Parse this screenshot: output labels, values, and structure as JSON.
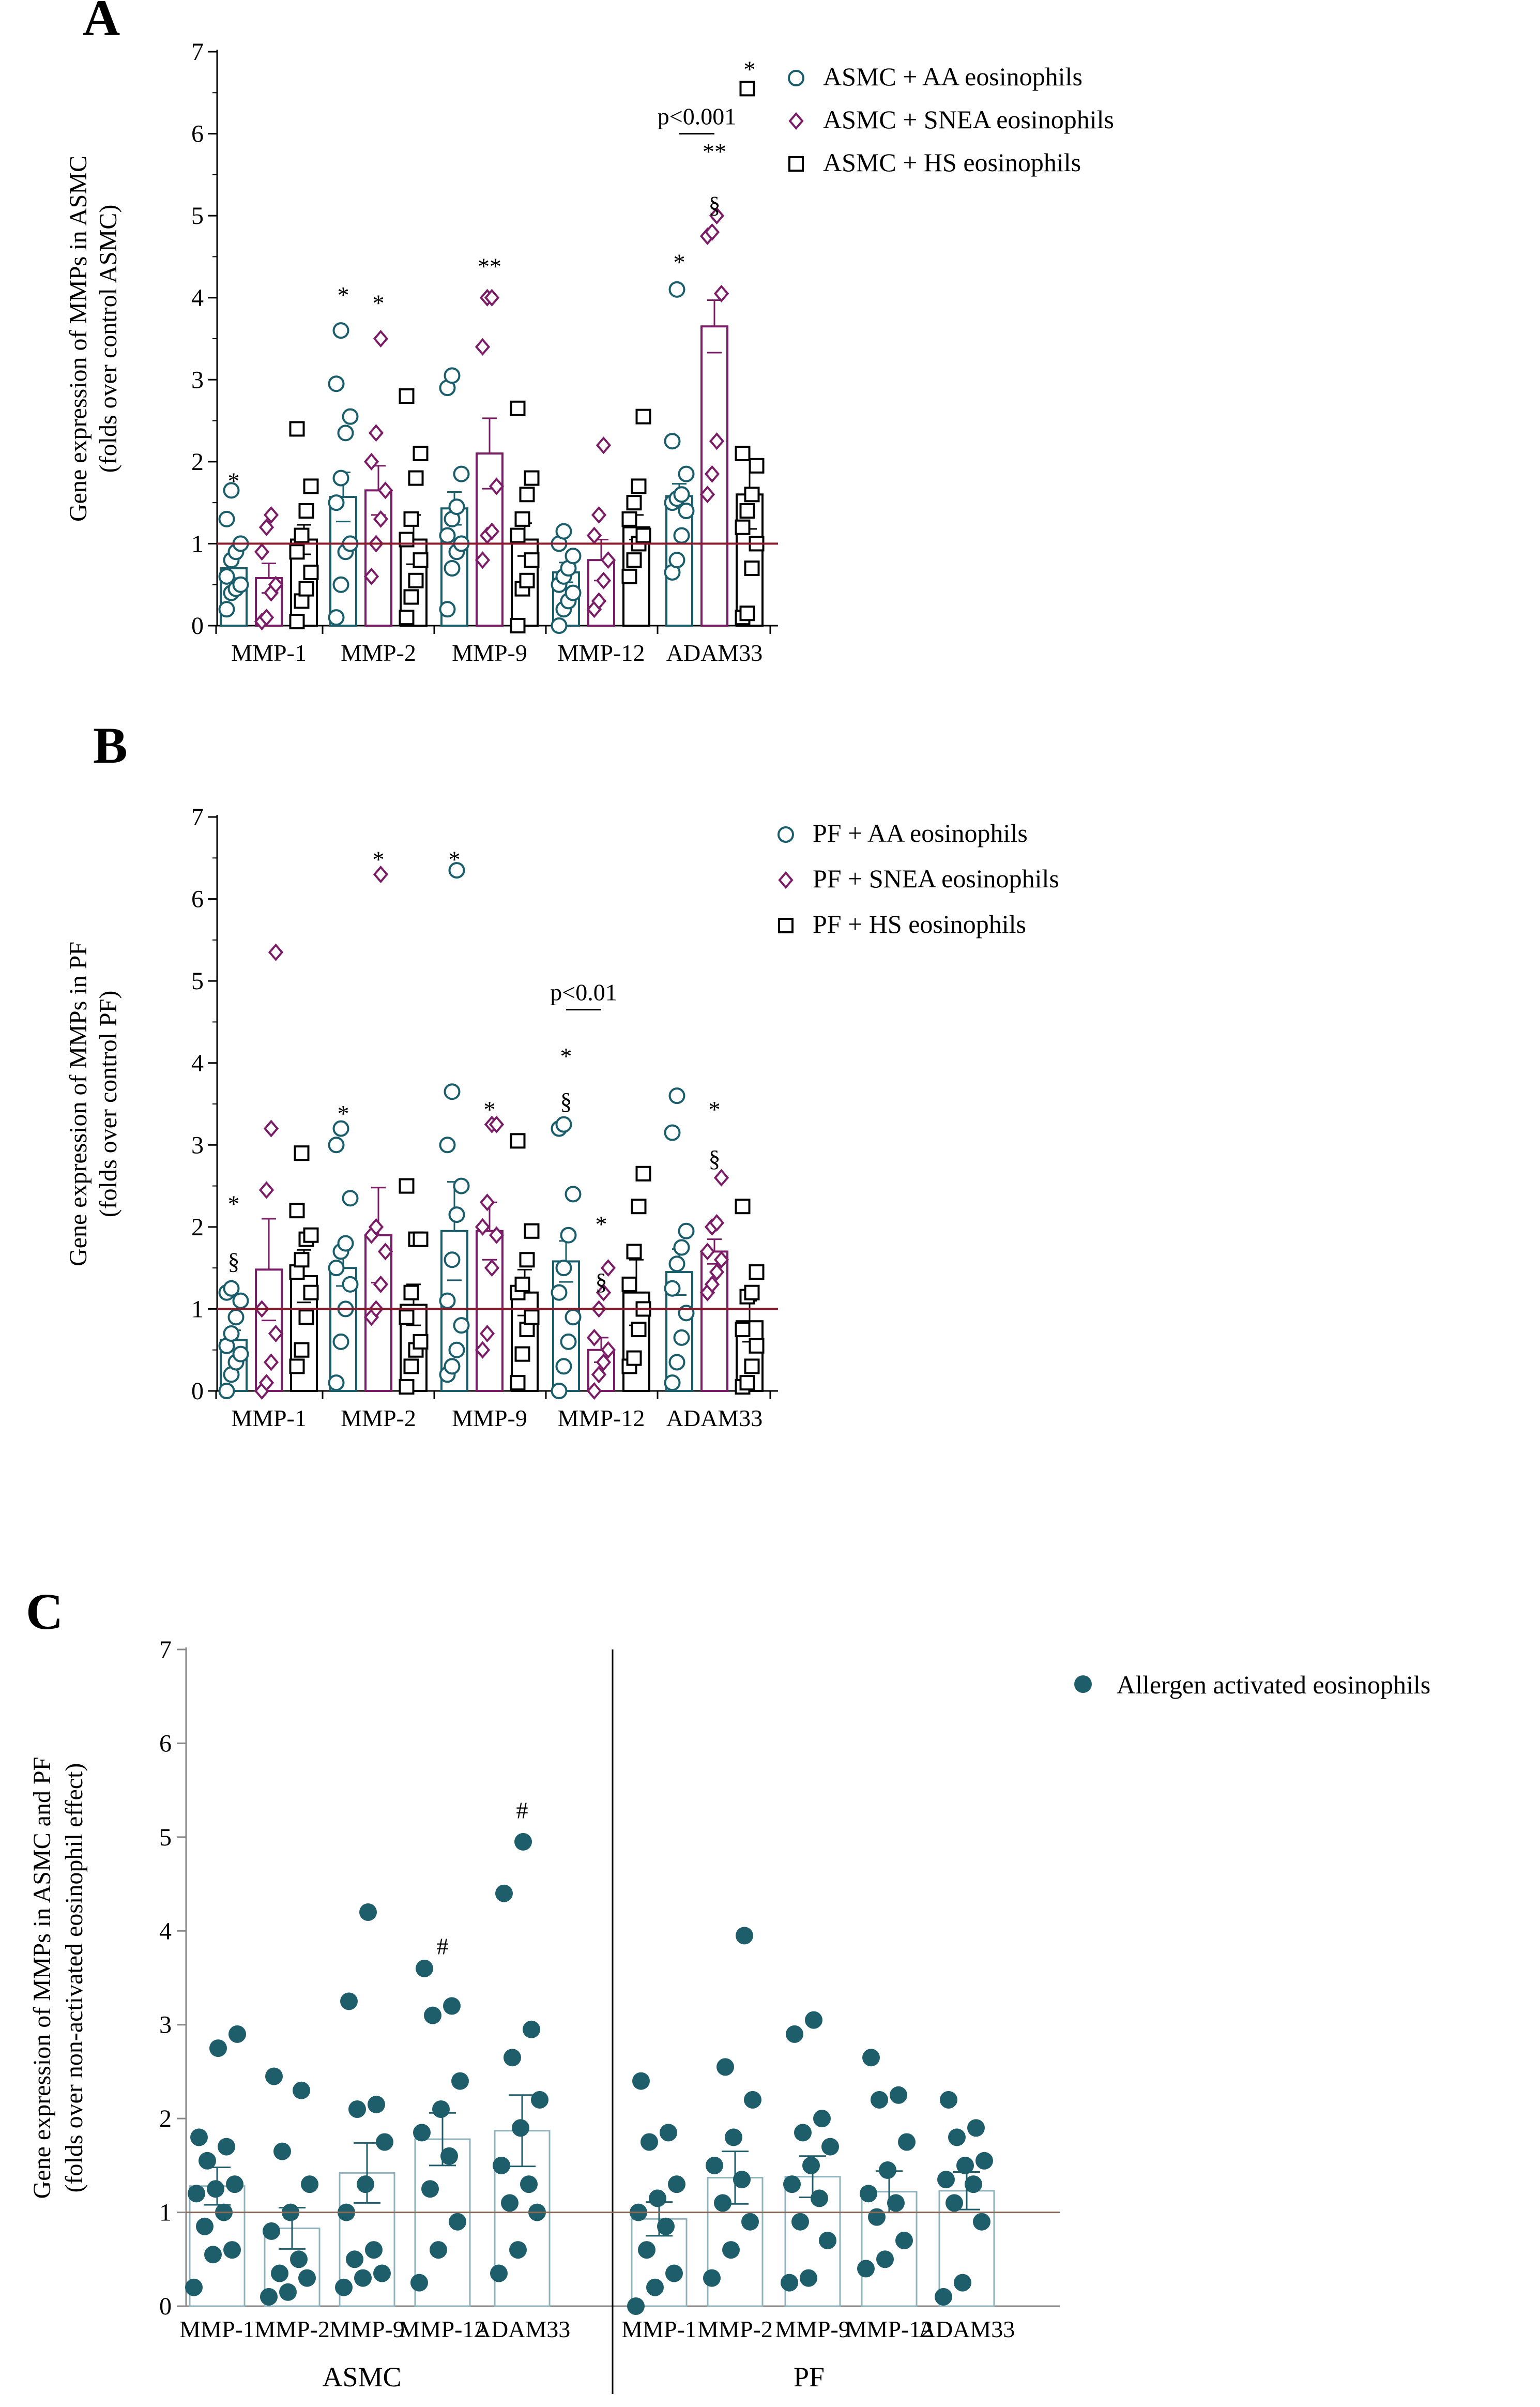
{
  "colors": {
    "aa": "#1a5e6b",
    "snea": "#7a1c66",
    "hs": "#000000",
    "refline": "#8a1a2a",
    "c_dot": "#1e5e6b"
  },
  "chart_data": [
    {
      "id": "A",
      "type": "bar",
      "panel_label": "A",
      "ylabel_lines": [
        "Gene expression of  MMPs in ASMC",
        "(folds over control ASMC)"
      ],
      "ylim": [
        0,
        7
      ],
      "yticks": [
        "0",
        "1",
        "2",
        "3",
        "4",
        "5",
        "6",
        "7"
      ],
      "reference_line": 1,
      "categories": [
        "MMP-1",
        "MMP-2",
        "MMP-9",
        "MMP-12",
        "ADAM33"
      ],
      "series": [
        {
          "name": "ASMC + AA eosinophils",
          "marker": "circle",
          "means": [
            0.7,
            1.57,
            1.43,
            0.65,
            1.58
          ],
          "errors": [
            0.12,
            0.3,
            0.2,
            0.12,
            0.15
          ],
          "points": [
            [
              0.2,
              0.4,
              0.45,
              0.5,
              0.6,
              0.8,
              0.9,
              1.0,
              1.3,
              1.65
            ],
            [
              0.1,
              0.5,
              0.9,
              1.0,
              1.5,
              1.8,
              2.35,
              2.55,
              2.95,
              3.6
            ],
            [
              0.2,
              0.7,
              0.9,
              1.0,
              1.1,
              1.3,
              1.45,
              1.85,
              2.9,
              3.05
            ],
            [
              0.0,
              0.2,
              0.3,
              0.4,
              0.5,
              0.6,
              0.7,
              0.85,
              1.0,
              1.15
            ],
            [
              0.65,
              0.8,
              1.1,
              1.4,
              1.5,
              1.55,
              1.6,
              1.85,
              2.25,
              4.1
            ]
          ]
        },
        {
          "name": "ASMC  + SNEA eosinophils",
          "marker": "diamond",
          "means": [
            0.58,
            1.65,
            2.1,
            0.8,
            3.65
          ],
          "errors": [
            0.18,
            0.3,
            0.43,
            0.25,
            0.32
          ],
          "points": [
            [
              0.05,
              0.1,
              0.4,
              0.5,
              0.9,
              1.2,
              1.35
            ],
            [
              0.6,
              1.0,
              1.3,
              1.65,
              2.0,
              2.35,
              3.5
            ],
            [
              0.8,
              1.1,
              1.15,
              1.7,
              3.4,
              4.0,
              4.0
            ],
            [
              0.2,
              0.3,
              0.55,
              0.8,
              1.1,
              1.35,
              2.2
            ],
            [
              1.6,
              1.85,
              2.25,
              4.05,
              4.75,
              4.8,
              5.0
            ]
          ]
        },
        {
          "name": "ASMC + HS eosinophils",
          "marker": "square",
          "means": [
            1.05,
            1.05,
            1.05,
            1.2,
            1.6
          ],
          "errors": [
            0.18,
            0.3,
            0.2,
            0.15,
            0.42
          ],
          "points": [
            [
              0.05,
              0.3,
              0.45,
              0.65,
              0.9,
              1.1,
              1.4,
              1.7,
              2.4
            ],
            [
              0.1,
              0.35,
              0.55,
              0.8,
              1.05,
              1.3,
              1.8,
              2.1,
              2.8
            ],
            [
              0.0,
              0.45,
              0.55,
              0.8,
              1.1,
              1.3,
              1.6,
              1.8,
              2.65
            ],
            [
              0.6,
              0.8,
              1.0,
              1.1,
              1.3,
              1.5,
              1.7,
              2.55
            ],
            [
              0.1,
              0.15,
              0.7,
              1.0,
              1.2,
              1.4,
              1.6,
              1.95,
              2.1,
              6.55
            ]
          ]
        }
      ],
      "annotations": [
        {
          "text": "*",
          "cat": 0,
          "series": 0,
          "y": 1.78
        },
        {
          "text": "*",
          "cat": 1,
          "series": 0,
          "y": 4.05
        },
        {
          "text": "*",
          "cat": 1,
          "series": 1,
          "y": 3.95
        },
        {
          "text": "**",
          "cat": 2,
          "series": 1,
          "y": 4.4
        },
        {
          "text": "*",
          "cat": 4,
          "series": 0,
          "y": 4.45
        },
        {
          "text": "§",
          "cat": 4,
          "series": 1,
          "y": 5.15
        },
        {
          "text": "**",
          "cat": 4,
          "series": 1,
          "y": 5.8
        },
        {
          "text": "*",
          "cat": 4,
          "series": 2,
          "y": 6.8
        }
      ],
      "bracket": {
        "text": "p<0.001",
        "cat": 4,
        "from_series": 0,
        "to_series": 1,
        "y": 6.0
      },
      "legend": [
        "ASMC + AA eosinophils",
        "ASMC  + SNEA eosinophils",
        "ASMC + HS eosinophils"
      ]
    },
    {
      "id": "B",
      "type": "bar",
      "panel_label": "B",
      "ylabel_lines": [
        "Gene expression of MMPs in PF",
        "(folds over control PF)"
      ],
      "ylim": [
        0,
        7
      ],
      "yticks": [
        "0",
        "1",
        "2",
        "3",
        "4",
        "5",
        "6",
        "7"
      ],
      "reference_line": 1,
      "categories": [
        "MMP-1",
        "MMP-2",
        "MMP-9",
        "MMP-12",
        "ADAM33"
      ],
      "series": [
        {
          "name": "PF + AA eosinophils",
          "marker": "circle",
          "means": [
            0.62,
            1.5,
            1.95,
            1.58,
            1.45
          ],
          "errors": [
            0.12,
            0.22,
            0.6,
            0.25,
            0.28
          ],
          "points": [
            [
              0.0,
              0.2,
              0.35,
              0.45,
              0.55,
              0.7,
              0.9,
              1.1,
              1.2,
              1.25
            ],
            [
              0.1,
              0.6,
              1.0,
              1.3,
              1.5,
              1.7,
              1.8,
              2.35,
              3.0,
              3.2
            ],
            [
              0.2,
              0.3,
              0.5,
              0.8,
              1.1,
              1.6,
              2.15,
              2.5,
              3.0,
              3.65,
              6.35
            ],
            [
              0.0,
              0.3,
              0.6,
              0.9,
              1.2,
              1.5,
              1.9,
              2.4,
              3.2,
              3.25
            ],
            [
              0.1,
              0.35,
              0.65,
              0.95,
              1.25,
              1.55,
              1.75,
              1.95,
              3.15,
              3.6
            ]
          ]
        },
        {
          "name": "PF + SNEA eosinophils",
          "marker": "diamond",
          "means": [
            1.48,
            1.9,
            1.95,
            0.5,
            1.7
          ],
          "errors": [
            0.62,
            0.58,
            0.35,
            0.15,
            0.15
          ],
          "points": [
            [
              0.0,
              0.1,
              0.35,
              0.7,
              1.0,
              2.45,
              3.2,
              5.35
            ],
            [
              0.9,
              1.0,
              1.3,
              1.7,
              1.9,
              2.0,
              6.3
            ],
            [
              0.5,
              0.7,
              1.5,
              1.9,
              2.0,
              2.3,
              3.25,
              3.25
            ],
            [
              0.0,
              0.2,
              0.35,
              0.5,
              0.65,
              1.0,
              1.2,
              1.5
            ],
            [
              1.2,
              1.3,
              1.45,
              1.6,
              1.7,
              2.0,
              2.05,
              2.6
            ]
          ]
        },
        {
          "name": "PF + HS eosinophils",
          "marker": "square",
          "means": [
            1.4,
            1.05,
            1.2,
            1.2,
            0.85
          ],
          "errors": [
            0.32,
            0.25,
            0.28,
            0.4,
            0.25
          ],
          "points": [
            [
              0.3,
              0.5,
              0.9,
              1.2,
              1.45,
              1.6,
              1.85,
              1.9,
              2.2,
              2.9
            ],
            [
              0.05,
              0.3,
              0.5,
              0.6,
              0.9,
              1.2,
              1.85,
              1.85,
              2.5
            ],
            [
              0.1,
              0.45,
              0.75,
              0.9,
              1.2,
              1.3,
              1.6,
              1.95,
              3.05
            ],
            [
              0.3,
              0.4,
              0.75,
              1.0,
              1.3,
              1.7,
              2.25,
              2.65
            ],
            [
              0.05,
              0.1,
              0.3,
              0.55,
              0.75,
              1.15,
              1.2,
              1.45,
              2.25
            ]
          ]
        }
      ],
      "annotations": [
        {
          "text": "*",
          "cat": 0,
          "series": 0,
          "y": 2.3
        },
        {
          "text": "§",
          "cat": 0,
          "series": 0,
          "y": 1.6
        },
        {
          "text": "*",
          "cat": 1,
          "series": 0,
          "y": 3.4
        },
        {
          "text": "*",
          "cat": 1,
          "series": 1,
          "y": 6.5
        },
        {
          "text": "*",
          "cat": 2,
          "series": 0,
          "y": 6.5
        },
        {
          "text": "*",
          "cat": 2,
          "series": 1,
          "y": 3.45
        },
        {
          "text": "*",
          "cat": 3,
          "series": 0,
          "y": 4.1
        },
        {
          "text": "§",
          "cat": 3,
          "series": 0,
          "y": 3.55
        },
        {
          "text": "*",
          "cat": 3,
          "series": 1,
          "y": 2.05
        },
        {
          "text": "§",
          "cat": 3,
          "series": 1,
          "y": 1.35
        },
        {
          "text": "*",
          "cat": 4,
          "series": 1,
          "y": 3.45
        },
        {
          "text": "§",
          "cat": 4,
          "series": 1,
          "y": 2.85
        }
      ],
      "bracket": {
        "text": "p<0.01",
        "cat": 3,
        "from_series": 0,
        "to_series": 1,
        "y": 4.65
      },
      "legend": [
        "PF + AA eosinophils",
        "PF + SNEA eosinophils",
        "PF + HS eosinophils"
      ]
    },
    {
      "id": "C",
      "type": "bar",
      "panel_label": "C",
      "ylabel_lines": [
        "Gene expression of MMPs in ASMC and PF",
        "(folds over non-activated eosinophil effect)"
      ],
      "ylim": [
        0,
        7
      ],
      "yticks": [
        "0",
        "1",
        "2",
        "3",
        "4",
        "5",
        "6",
        "7"
      ],
      "reference_line": 1,
      "groups": [
        "ASMC",
        "PF"
      ],
      "categories": [
        "MMP-1",
        "MMP-2",
        "MMP-9",
        "MMP-12",
        "ADAM33",
        "MMP-1",
        "MMP-2",
        "MMP-9",
        "MMP-12",
        "ADAM33"
      ],
      "series": [
        {
          "name": "Allergen activated eosinophils",
          "marker": "dot",
          "means": [
            1.28,
            0.83,
            1.42,
            1.78,
            1.87,
            0.93,
            1.37,
            1.38,
            1.22,
            1.23
          ],
          "errors": [
            0.2,
            0.22,
            0.32,
            0.28,
            0.38,
            0.18,
            0.28,
            0.22,
            0.22,
            0.2
          ],
          "points": [
            [
              0.2,
              0.55,
              0.6,
              0.85,
              1.0,
              1.2,
              1.25,
              1.3,
              1.55,
              1.7,
              1.8,
              2.75,
              2.9
            ],
            [
              0.1,
              0.15,
              0.3,
              0.35,
              0.5,
              0.8,
              1.0,
              1.3,
              1.65,
              2.3,
              2.45
            ],
            [
              0.2,
              0.3,
              0.35,
              0.5,
              0.6,
              1.0,
              1.3,
              1.75,
              2.1,
              2.15,
              3.25,
              4.2
            ],
            [
              0.25,
              0.6,
              0.9,
              1.25,
              1.6,
              1.85,
              2.1,
              2.4,
              3.1,
              3.2,
              3.6
            ],
            [
              0.35,
              0.6,
              1.0,
              1.1,
              1.3,
              1.5,
              1.9,
              2.2,
              2.65,
              2.95,
              4.4,
              4.95
            ],
            [
              0.0,
              0.2,
              0.35,
              0.6,
              0.85,
              1.0,
              1.15,
              1.3,
              1.75,
              1.85,
              2.4
            ],
            [
              0.3,
              0.6,
              0.9,
              1.1,
              1.35,
              1.5,
              1.8,
              2.2,
              2.55,
              3.95
            ],
            [
              0.25,
              0.3,
              0.7,
              0.9,
              1.15,
              1.3,
              1.5,
              1.7,
              1.85,
              2.0,
              2.9,
              3.05
            ],
            [
              0.4,
              0.5,
              0.7,
              0.95,
              1.1,
              1.2,
              1.45,
              1.75,
              2.2,
              2.25,
              2.65
            ],
            [
              0.1,
              0.25,
              0.9,
              1.1,
              1.3,
              1.35,
              1.5,
              1.55,
              1.8,
              1.9,
              2.2
            ]
          ]
        }
      ],
      "annotations": [
        {
          "text": "#",
          "cat": 3,
          "y": 3.85
        },
        {
          "text": "#",
          "cat": 4,
          "y": 5.3
        }
      ],
      "legend": [
        "Allergen activated eosinophils"
      ]
    }
  ]
}
